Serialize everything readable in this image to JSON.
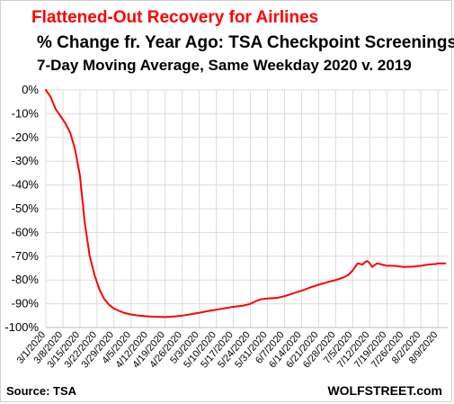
{
  "chart_data": {
    "type": "line",
    "title": "Flattened-Out Recovery for Airlines",
    "subtitle": "% Change fr. Year Ago: TSA Checkpoint Screenings",
    "subtitle2": "7-Day Moving Average, Same Weekday 2020 v. 2019",
    "xlabel": "",
    "ylabel": "",
    "ylim": [
      -100,
      0
    ],
    "yticks": [
      0,
      -10,
      -20,
      -30,
      -40,
      -50,
      -60,
      -70,
      -80,
      -90,
      -100
    ],
    "ytick_labels": [
      "0%",
      "-10%",
      "-20%",
      "-30%",
      "-40%",
      "-50%",
      "-60%",
      "-70%",
      "-80%",
      "-90%",
      "-100%"
    ],
    "xticks": [
      "2020-03-01",
      "2020-03-08",
      "2020-03-15",
      "2020-03-22",
      "2020-03-29",
      "2020-04-05",
      "2020-04-12",
      "2020-04-19",
      "2020-04-26",
      "2020-05-03",
      "2020-05-10",
      "2020-05-17",
      "2020-05-24",
      "2020-05-31",
      "2020-06-07",
      "2020-06-14",
      "2020-06-21",
      "2020-06-28",
      "2020-07-05",
      "2020-07-12",
      "2020-07-19",
      "2020-07-26",
      "2020-08-02",
      "2020-08-09"
    ],
    "xtick_labels": [
      "3/1/2020",
      "3/8/2020",
      "3/15/2020",
      "3/22/2020",
      "3/29/2020",
      "4/5/2020",
      "4/12/2020",
      "4/19/2020",
      "4/26/2020",
      "5/3/2020",
      "5/10/2020",
      "5/17/2020",
      "5/24/2020",
      "5/31/2020",
      "6/7/2020",
      "6/14/2020",
      "6/21/2020",
      "6/28/2020",
      "7/5/2020",
      "7/12/2020",
      "7/19/2020",
      "7/26/2020",
      "8/2/2020",
      "8/9/2020"
    ],
    "grid": true,
    "legend": "none",
    "series": [
      {
        "color": "#ff0000",
        "x": [
          "2020-03-01",
          "2020-03-03",
          "2020-03-05",
          "2020-03-07",
          "2020-03-09",
          "2020-03-11",
          "2020-03-13",
          "2020-03-15",
          "2020-03-17",
          "2020-03-19",
          "2020-03-21",
          "2020-03-23",
          "2020-03-25",
          "2020-03-27",
          "2020-03-29",
          "2020-03-31",
          "2020-04-02",
          "2020-04-05",
          "2020-04-08",
          "2020-04-12",
          "2020-04-16",
          "2020-04-19",
          "2020-04-23",
          "2020-04-26",
          "2020-04-30",
          "2020-05-03",
          "2020-05-07",
          "2020-05-10",
          "2020-05-14",
          "2020-05-17",
          "2020-05-21",
          "2020-05-24",
          "2020-05-26",
          "2020-05-28",
          "2020-05-31",
          "2020-06-04",
          "2020-06-07",
          "2020-06-11",
          "2020-06-14",
          "2020-06-18",
          "2020-06-21",
          "2020-06-25",
          "2020-06-28",
          "2020-07-01",
          "2020-07-03",
          "2020-07-05",
          "2020-07-07",
          "2020-07-09",
          "2020-07-10",
          "2020-07-11",
          "2020-07-12",
          "2020-07-13",
          "2020-07-15",
          "2020-07-17",
          "2020-07-19",
          "2020-07-22",
          "2020-07-26",
          "2020-07-30",
          "2020-08-02",
          "2020-08-05",
          "2020-08-08",
          "2020-08-09",
          "2020-08-12"
        ],
        "y": [
          0,
          -3,
          -8,
          -11,
          -14,
          -18,
          -25,
          -36,
          -56,
          -70,
          -78,
          -84,
          -88,
          -90.5,
          -92,
          -93,
          -93.8,
          -94.5,
          -95,
          -95.3,
          -95.5,
          -95.6,
          -95.3,
          -95,
          -94.3,
          -93.8,
          -93,
          -92.5,
          -91.8,
          -91.3,
          -90.8,
          -90,
          -89,
          -88.2,
          -87.8,
          -87.5,
          -86.8,
          -85.5,
          -84.5,
          -83,
          -82,
          -80.8,
          -80,
          -79,
          -78,
          -76,
          -73,
          -73.5,
          -72.5,
          -72,
          -73,
          -74.5,
          -73,
          -73.5,
          -74,
          -74,
          -74.5,
          -74.3,
          -74,
          -73.5,
          -73.3,
          -73,
          -73
        ]
      }
    ]
  },
  "footer": {
    "source": "Source: TSA",
    "brand": "WOLFSTREET.com"
  }
}
